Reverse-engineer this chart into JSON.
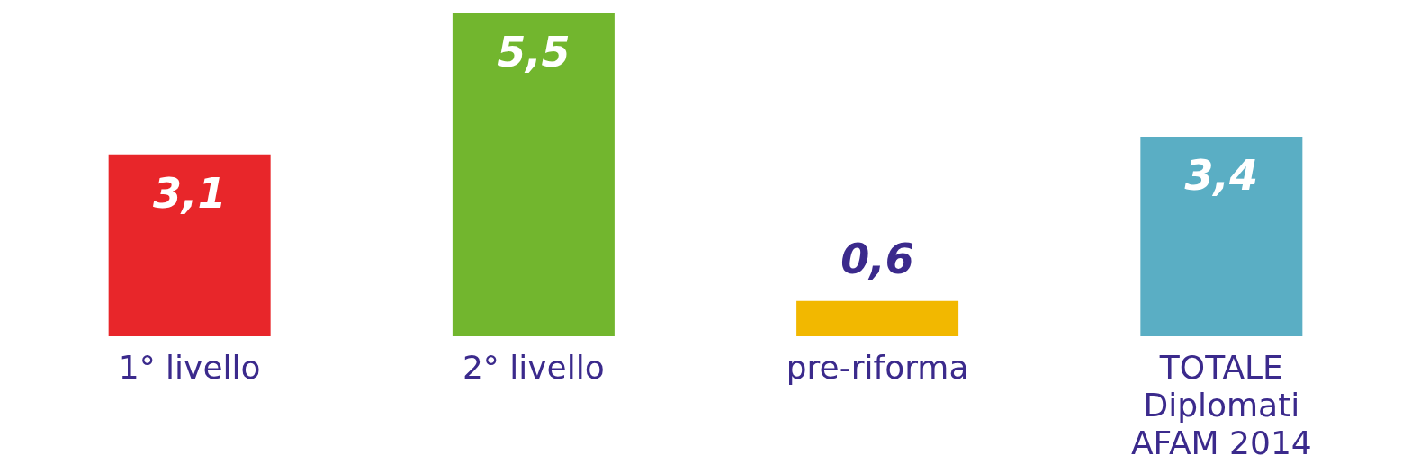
{
  "chart_data": {
    "type": "bar",
    "categories": [
      "1° livello",
      "2° livello",
      "pre-riforma",
      null,
      "TOTALE\nDiplomati\nAFAM 2014"
    ],
    "values": [
      3.1,
      5.5,
      0.6,
      null,
      3.4
    ],
    "value_labels": [
      "3,1",
      "5,5",
      "0,6",
      null,
      "3,4"
    ],
    "colors": [
      "#e8262a",
      "#72b62e",
      "#f2b800",
      null,
      "#5aaec4"
    ],
    "grid": false
  }
}
